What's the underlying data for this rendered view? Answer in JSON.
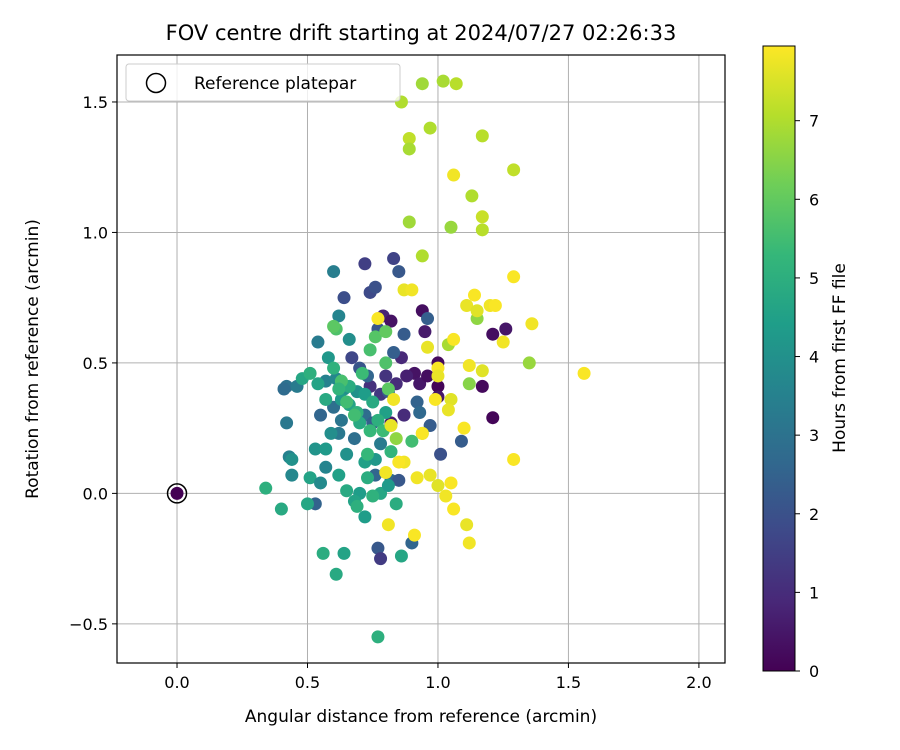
{
  "chart_data": {
    "type": "scatter",
    "title": "FOV centre drift starting at 2024/07/27 02:26:33",
    "xlabel": "Angular distance from reference (arcmin)",
    "ylabel": "Rotation from reference (arcmin)",
    "xlim": [
      -0.23,
      2.1
    ],
    "ylim": [
      -0.65,
      1.68
    ],
    "x_ticks": [
      0.0,
      0.5,
      1.0,
      1.5,
      2.0
    ],
    "x_tick_labels": [
      "0.0",
      "0.5",
      "1.0",
      "1.5",
      "2.0"
    ],
    "y_ticks": [
      -0.5,
      0.0,
      0.5,
      1.0,
      1.5
    ],
    "y_tick_labels": [
      "−0.5",
      "0.0",
      "0.5",
      "1.0",
      "1.5"
    ],
    "grid": true,
    "legend": {
      "placement": "top-left",
      "entries": [
        "Reference platepar"
      ]
    },
    "reference_point": {
      "x": 0.0,
      "y": 0.0,
      "label": "Reference platepar"
    },
    "colorbar": {
      "label": "Hours from first FF file",
      "min": 0,
      "max": 7.95,
      "ticks": [
        0,
        1,
        2,
        3,
        4,
        5,
        6,
        7
      ],
      "tick_labels": [
        "0",
        "1",
        "2",
        "3",
        "4",
        "5",
        "6",
        "7"
      ],
      "colormap": "viridis"
    },
    "colors": {
      "viridis": [
        "#440154",
        "#482878",
        "#3e4989",
        "#31688e",
        "#26828e",
        "#1f9e89",
        "#35b779",
        "#6ece58",
        "#b5de2b",
        "#fde725"
      ],
      "grid": "#b0b0b0",
      "axes": "#000000"
    },
    "points": [
      [
        0.0,
        0.0,
        0.0
      ],
      [
        0.91,
        0.46,
        0.4
      ],
      [
        0.93,
        0.42,
        0.5
      ],
      [
        0.96,
        0.45,
        0.3
      ],
      [
        1.0,
        0.5,
        0.2
      ],
      [
        1.0,
        0.41,
        0.1
      ],
      [
        0.94,
        0.7,
        0.3
      ],
      [
        0.95,
        0.62,
        0.6
      ],
      [
        1.17,
        0.41,
        0.2
      ],
      [
        1.21,
        0.29,
        0.1
      ],
      [
        1.21,
        0.61,
        0.3
      ],
      [
        1.26,
        0.63,
        0.5
      ],
      [
        0.79,
        0.68,
        0.8
      ],
      [
        0.82,
        0.66,
        0.4
      ],
      [
        1.0,
        0.37,
        0.5
      ],
      [
        0.88,
        0.45,
        0.7
      ],
      [
        0.84,
        0.42,
        1.0
      ],
      [
        0.8,
        0.45,
        1.2
      ],
      [
        0.86,
        0.52,
        0.9
      ],
      [
        0.74,
        0.41,
        1.1
      ],
      [
        0.78,
        0.38,
        1.3
      ],
      [
        0.87,
        0.3,
        1.0
      ],
      [
        0.82,
        0.27,
        0.6
      ],
      [
        0.72,
        0.88,
        1.5
      ],
      [
        0.83,
        0.9,
        1.6
      ],
      [
        0.74,
        0.77,
        1.8
      ],
      [
        0.76,
        0.79,
        2.0
      ],
      [
        0.85,
        0.85,
        2.2
      ],
      [
        0.64,
        0.75,
        1.9
      ],
      [
        0.77,
        0.63,
        2.1
      ],
      [
        0.87,
        0.61,
        2.3
      ],
      [
        0.96,
        0.67,
        2.4
      ],
      [
        0.67,
        0.52,
        1.7
      ],
      [
        0.7,
        0.48,
        2.1
      ],
      [
        0.83,
        0.54,
        2.4
      ],
      [
        0.73,
        0.45,
        2.6
      ],
      [
        0.81,
        0.39,
        2.2
      ],
      [
        0.92,
        0.35,
        2.5
      ],
      [
        0.93,
        0.31,
        2.7
      ],
      [
        0.97,
        0.26,
        2.3
      ],
      [
        0.6,
        0.33,
        2.9
      ],
      [
        0.55,
        0.3,
        2.6
      ],
      [
        0.63,
        0.28,
        3.1
      ],
      [
        0.72,
        0.3,
        2.8
      ],
      [
        0.75,
        0.27,
        2.4
      ],
      [
        0.62,
        0.23,
        3.2
      ],
      [
        0.68,
        0.21,
        2.9
      ],
      [
        0.78,
        0.19,
        3.3
      ],
      [
        1.01,
        0.15,
        2.0
      ],
      [
        1.09,
        0.2,
        2.3
      ],
      [
        0.76,
        0.07,
        2.6
      ],
      [
        0.82,
        0.05,
        2.7
      ],
      [
        0.85,
        0.05,
        2.2
      ],
      [
        0.53,
        -0.04,
        2.5
      ],
      [
        0.77,
        -0.21,
        2.2
      ],
      [
        0.78,
        -0.25,
        1.4
      ],
      [
        0.9,
        -0.19,
        2.6
      ],
      [
        0.42,
        0.41,
        3.0
      ],
      [
        0.41,
        0.4,
        2.8
      ],
      [
        0.46,
        0.41,
        3.3
      ],
      [
        0.57,
        0.43,
        3.5
      ],
      [
        0.61,
        0.44,
        3.7
      ],
      [
        0.64,
        0.4,
        3.9
      ],
      [
        0.69,
        0.39,
        4.0
      ],
      [
        0.6,
        0.85,
        3.4
      ],
      [
        0.62,
        0.68,
        3.6
      ],
      [
        0.66,
        0.59,
        3.9
      ],
      [
        0.54,
        0.58,
        3.3
      ],
      [
        0.58,
        0.52,
        4.2
      ],
      [
        0.72,
        0.38,
        4.4
      ],
      [
        0.63,
        0.36,
        4.3
      ],
      [
        0.66,
        0.34,
        4.6
      ],
      [
        0.75,
        0.35,
        4.8
      ],
      [
        0.8,
        0.31,
        4.5
      ],
      [
        0.59,
        0.23,
        3.9
      ],
      [
        0.53,
        0.17,
        4.1
      ],
      [
        0.57,
        0.17,
        4.3
      ],
      [
        0.65,
        0.15,
        4.0
      ],
      [
        0.72,
        0.12,
        4.5
      ],
      [
        0.76,
        0.13,
        4.2
      ],
      [
        0.42,
        0.27,
        3.2
      ],
      [
        0.43,
        0.14,
        3.5
      ],
      [
        0.44,
        0.13,
        4.0
      ],
      [
        0.44,
        0.07,
        3.7
      ],
      [
        0.51,
        0.06,
        4.6
      ],
      [
        0.57,
        0.1,
        3.6
      ],
      [
        0.55,
        0.04,
        3.8
      ],
      [
        0.62,
        0.07,
        4.5
      ],
      [
        0.65,
        0.01,
        4.8
      ],
      [
        0.7,
        0.0,
        4.4
      ],
      [
        0.73,
        0.06,
        4.9
      ],
      [
        0.78,
        0.0,
        4.7
      ],
      [
        0.81,
        0.03,
        4.3
      ],
      [
        0.68,
        -0.03,
        4.6
      ],
      [
        0.69,
        -0.05,
        5.0
      ],
      [
        0.72,
        -0.09,
        4.4
      ],
      [
        0.75,
        -0.01,
        5.1
      ],
      [
        0.84,
        -0.04,
        4.9
      ],
      [
        0.86,
        -0.24,
        4.7
      ],
      [
        0.56,
        -0.23,
        4.9
      ],
      [
        0.64,
        -0.23,
        4.6
      ],
      [
        0.61,
        -0.31,
        4.8
      ],
      [
        0.5,
        -0.04,
        4.7
      ],
      [
        0.34,
        0.02,
        5.0
      ],
      [
        0.4,
        -0.06,
        4.8
      ],
      [
        0.77,
        -0.55,
        5.0
      ],
      [
        0.48,
        0.44,
        4.7
      ],
      [
        0.51,
        0.46,
        5.0
      ],
      [
        0.54,
        0.42,
        4.6
      ],
      [
        0.57,
        0.36,
        4.8
      ],
      [
        0.6,
        0.48,
        5.1
      ],
      [
        0.63,
        0.43,
        5.2
      ],
      [
        0.66,
        0.41,
        4.9
      ],
      [
        0.69,
        0.31,
        5.1
      ],
      [
        0.7,
        0.27,
        4.8
      ],
      [
        0.74,
        0.24,
        5.3
      ],
      [
        0.77,
        0.28,
        5.0
      ],
      [
        0.79,
        0.24,
        5.4
      ],
      [
        0.82,
        0.16,
        5.2
      ],
      [
        0.9,
        0.2,
        5.5
      ],
      [
        0.73,
        0.15,
        5.3
      ],
      [
        0.68,
        0.3,
        5.5
      ],
      [
        0.74,
        0.55,
        5.6
      ],
      [
        0.76,
        0.6,
        5.8
      ],
      [
        0.61,
        0.63,
        5.7
      ],
      [
        0.6,
        0.64,
        5.9
      ],
      [
        0.63,
        0.43,
        5.6
      ],
      [
        0.71,
        0.46,
        5.4
      ],
      [
        0.8,
        0.5,
        5.7
      ],
      [
        0.62,
        0.4,
        5.2
      ],
      [
        0.65,
        0.35,
        5.5
      ],
      [
        0.8,
        0.62,
        6.0
      ],
      [
        0.81,
        0.4,
        5.9
      ],
      [
        0.84,
        0.21,
        6.6
      ],
      [
        0.94,
        0.23,
        6.8
      ],
      [
        1.04,
        0.57,
        6.9
      ],
      [
        1.12,
        0.42,
        6.5
      ],
      [
        1.15,
        0.67,
        6.6
      ],
      [
        1.35,
        0.5,
        6.7
      ],
      [
        0.86,
        1.5,
        7.0
      ],
      [
        0.94,
        1.57,
        6.8
      ],
      [
        1.02,
        1.58,
        6.9
      ],
      [
        1.07,
        1.57,
        7.1
      ],
      [
        0.97,
        1.4,
        7.0
      ],
      [
        0.89,
        1.36,
        7.2
      ],
      [
        0.89,
        1.32,
        6.9
      ],
      [
        1.17,
        1.37,
        7.1
      ],
      [
        1.29,
        1.24,
        7.2
      ],
      [
        1.13,
        1.14,
        7.0
      ],
      [
        1.17,
        1.06,
        7.3
      ],
      [
        1.17,
        1.01,
        7.1
      ],
      [
        0.89,
        1.04,
        6.8
      ],
      [
        1.05,
        1.02,
        6.7
      ],
      [
        0.94,
        0.91,
        7.0
      ],
      [
        1.06,
        1.22,
        7.8
      ],
      [
        1.29,
        0.83,
        7.9
      ],
      [
        0.87,
        0.78,
        7.7
      ],
      [
        0.9,
        0.78,
        7.8
      ],
      [
        1.14,
        0.76,
        7.9
      ],
      [
        1.11,
        0.72,
        7.7
      ],
      [
        1.2,
        0.72,
        7.8
      ],
      [
        1.22,
        0.72,
        7.9
      ],
      [
        1.15,
        0.7,
        7.6
      ],
      [
        1.36,
        0.65,
        7.8
      ],
      [
        0.77,
        0.67,
        7.9
      ],
      [
        0.96,
        0.56,
        7.7
      ],
      [
        1.06,
        0.59,
        7.9
      ],
      [
        1.25,
        0.58,
        7.8
      ],
      [
        1.0,
        0.48,
        7.9
      ],
      [
        1.0,
        0.45,
        7.7
      ],
      [
        1.12,
        0.49,
        7.8
      ],
      [
        1.17,
        0.47,
        7.6
      ],
      [
        1.56,
        0.46,
        7.9
      ],
      [
        0.83,
        0.36,
        7.8
      ],
      [
        0.99,
        0.36,
        7.9
      ],
      [
        1.05,
        0.36,
        7.6
      ],
      [
        1.04,
        0.32,
        7.7
      ],
      [
        1.1,
        0.25,
        7.9
      ],
      [
        0.82,
        0.26,
        7.7
      ],
      [
        0.87,
        0.12,
        7.8
      ],
      [
        0.85,
        0.12,
        7.9
      ],
      [
        0.8,
        0.08,
        7.8
      ],
      [
        1.29,
        0.13,
        7.9
      ],
      [
        0.97,
        0.07,
        7.7
      ],
      [
        0.92,
        0.06,
        7.8
      ],
      [
        1.05,
        0.04,
        7.9
      ],
      [
        1.0,
        0.03,
        7.6
      ],
      [
        1.03,
        -0.01,
        7.8
      ],
      [
        1.06,
        -0.06,
        7.9
      ],
      [
        1.11,
        -0.12,
        7.7
      ],
      [
        0.81,
        -0.12,
        7.8
      ],
      [
        0.91,
        -0.16,
        7.9
      ],
      [
        1.12,
        -0.19,
        7.8
      ],
      [
        0.94,
        0.23,
        7.9
      ]
    ]
  }
}
